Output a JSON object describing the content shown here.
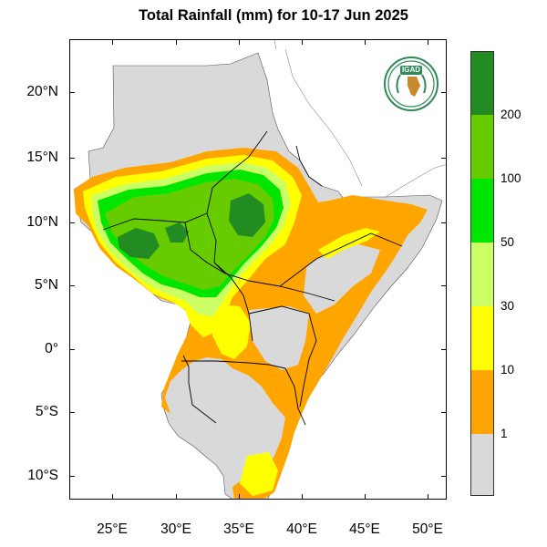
{
  "title": "Total Rainfall (mm) for 10-17 Jun 2025",
  "lat_ticks": [
    "20°N",
    "15°N",
    "10°N",
    "5°N",
    "0°",
    "5°S",
    "10°S"
  ],
  "lon_ticks": [
    "25°E",
    "30°E",
    "35°E",
    "40°E",
    "45°E",
    "50°E"
  ],
  "legend": {
    "labels": [
      "200",
      "100",
      "50",
      "30",
      "10",
      "1"
    ],
    "colors": [
      "#228B22",
      "#66CC00",
      "#00E600",
      "#CCFF66",
      "#FFFF00",
      "#FFA500",
      "#D9D9D9"
    ]
  },
  "logo": {
    "text": "IGAD"
  },
  "colors": {
    "land_no_rain": "#D9D9D9",
    "ocean": "#FFFFFF",
    "border": "#000000"
  }
}
